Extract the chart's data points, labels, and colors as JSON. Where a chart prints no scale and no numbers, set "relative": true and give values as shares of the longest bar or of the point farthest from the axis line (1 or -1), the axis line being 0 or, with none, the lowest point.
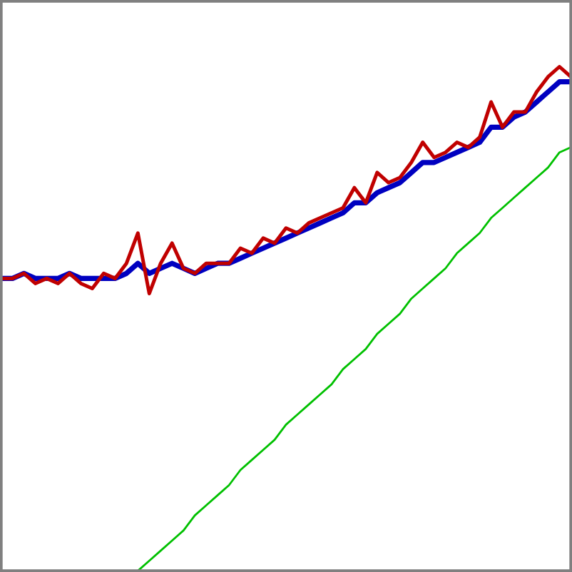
{
  "chart_data": {
    "type": "line",
    "relative": true,
    "marker": "none",
    "line_style": "solid",
    "categories": [
      null,
      null,
      null,
      null,
      null,
      null,
      null,
      null,
      null,
      null,
      null,
      null,
      null,
      null,
      null,
      null,
      null,
      null,
      null,
      null,
      null,
      null,
      null,
      null,
      null,
      null,
      null,
      null,
      null,
      null,
      null,
      null,
      null,
      null,
      null,
      null,
      null,
      null,
      null,
      null,
      null,
      null,
      null,
      null,
      null,
      null,
      null,
      null,
      null,
      null,
      null
    ],
    "series": [
      {
        "color": "#0000c0",
        "values": [
          0.58,
          0.58,
          0.59,
          0.58,
          0.58,
          0.58,
          0.59,
          0.58,
          0.58,
          0.58,
          0.58,
          0.59,
          0.61,
          0.59,
          0.6,
          0.61,
          0.6,
          0.59,
          0.6,
          0.61,
          0.61,
          0.62,
          0.63,
          0.64,
          0.65,
          0.66,
          0.67,
          0.68,
          0.69,
          0.7,
          0.71,
          0.73,
          0.73,
          0.75,
          0.76,
          0.77,
          0.79,
          0.81,
          0.81,
          0.82,
          0.83,
          0.84,
          0.85,
          0.88,
          0.88,
          0.9,
          0.91,
          0.93,
          0.95,
          0.97,
          0.97
        ]
      },
      {
        "color": "#c00000",
        "values": [
          0.58,
          0.58,
          0.59,
          0.57,
          0.58,
          0.57,
          0.59,
          0.57,
          0.56,
          0.59,
          0.58,
          0.61,
          0.67,
          0.55,
          0.61,
          0.65,
          0.6,
          0.59,
          0.61,
          0.61,
          0.61,
          0.64,
          0.63,
          0.66,
          0.65,
          0.68,
          0.67,
          0.69,
          0.7,
          0.71,
          0.72,
          0.76,
          0.73,
          0.79,
          0.77,
          0.78,
          0.81,
          0.85,
          0.82,
          0.83,
          0.85,
          0.84,
          0.86,
          0.93,
          0.88,
          0.91,
          0.91,
          0.95,
          0.98,
          1.0,
          0.98
        ]
      },
      {
        "color": "#00c000",
        "values": [
          null,
          null,
          null,
          null,
          null,
          null,
          null,
          null,
          null,
          null,
          null,
          null,
          0,
          0.02,
          0.04,
          0.06,
          0.08,
          0.11,
          0.13,
          0.15,
          0.17,
          0.2,
          0.22,
          0.24,
          0.26,
          0.29,
          0.31,
          0.33,
          0.35,
          0.37,
          0.4,
          0.42,
          0.44,
          0.47,
          0.49,
          0.51,
          0.54,
          0.56,
          0.58,
          0.6,
          0.63,
          0.65,
          0.67,
          0.7,
          0.72,
          0.74,
          0.76,
          0.78,
          0.8,
          0.83,
          0.84
        ]
      }
    ]
  }
}
